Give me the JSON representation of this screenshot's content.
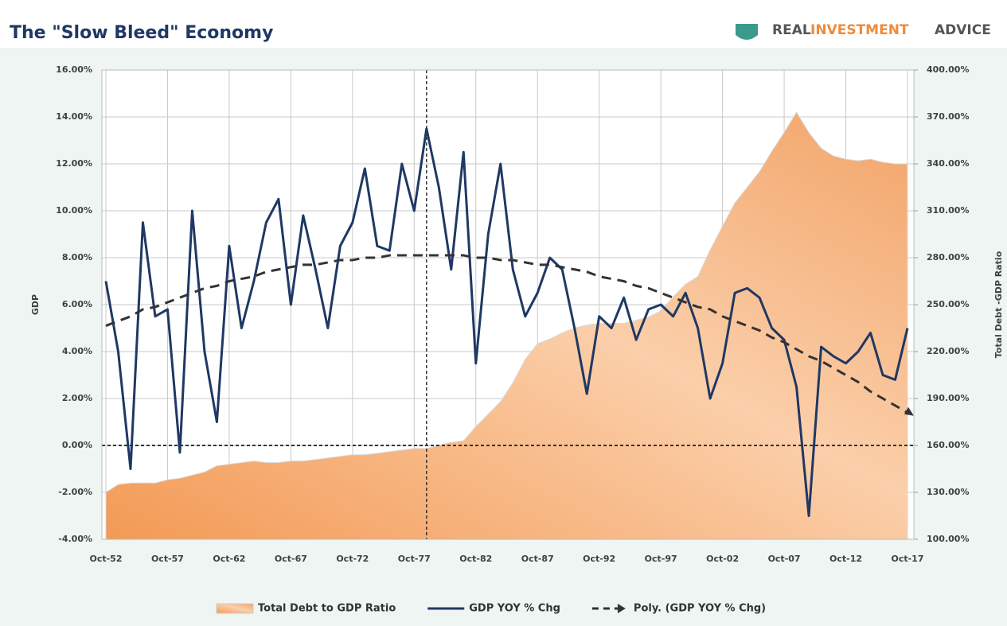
{
  "chart_data": {
    "type": "line",
    "title": "The \"Slow Bleed\" Economy",
    "brand": [
      "REAL",
      "INVESTMENT",
      "ADVICE"
    ],
    "ylabel": "GDP",
    "y2label": "Total Debt -GDP Ratio",
    "categories": [
      "Oct-52",
      null,
      null,
      null,
      null,
      "Oct-57",
      null,
      null,
      null,
      null,
      "Oct-62",
      null,
      null,
      null,
      null,
      "Oct-67",
      null,
      null,
      null,
      null,
      "Oct-72",
      null,
      null,
      null,
      null,
      "Oct-77",
      null,
      null,
      null,
      null,
      "Oct-82",
      null,
      null,
      null,
      null,
      "Oct-87",
      null,
      null,
      null,
      null,
      "Oct-92",
      null,
      null,
      null,
      null,
      "Oct-97",
      null,
      null,
      null,
      null,
      "Oct-02",
      null,
      null,
      null,
      null,
      "Oct-07",
      null,
      null,
      null,
      null,
      "Oct-12",
      null,
      null,
      null,
      null,
      "Oct-17"
    ],
    "ylim": [
      -4,
      16
    ],
    "yticks": [
      {
        "value": -4,
        "label": "-4.00%"
      },
      {
        "value": -2,
        "label": "-2.00%"
      },
      {
        "value": 0,
        "label": "0.00%"
      },
      {
        "value": 2,
        "label": "2.00%"
      },
      {
        "value": 4,
        "label": "4.00%"
      },
      {
        "value": 6,
        "label": "6.00%"
      },
      {
        "value": 8,
        "label": "8.00%"
      },
      {
        "value": 10,
        "label": "10.00%"
      },
      {
        "value": 12,
        "label": "12.00%"
      },
      {
        "value": 14,
        "label": "14.00%"
      },
      {
        "value": 16,
        "label": "16.00%"
      }
    ],
    "y2lim": [
      100,
      400
    ],
    "y2ticks": [
      {
        "value": 100,
        "label": "100.00%"
      },
      {
        "value": 130,
        "label": "130.00%"
      },
      {
        "value": 160,
        "label": "160.00%"
      },
      {
        "value": 190,
        "label": "190.00%"
      },
      {
        "value": 220,
        "label": "220.00%"
      },
      {
        "value": 250,
        "label": "250.00%"
      },
      {
        "value": 280,
        "label": "280.00%"
      },
      {
        "value": 310,
        "label": "310.00%"
      },
      {
        "value": 340,
        "label": "340.00%"
      },
      {
        "value": 370,
        "label": "370.00%"
      },
      {
        "value": 400,
        "label": "400.00%"
      }
    ],
    "grid": true,
    "series": [
      {
        "name": "Total Debt to GDP Ratio",
        "kind": "area",
        "axis": "y2",
        "color": "#f4a467",
        "values": [
          130,
          135,
          136,
          136,
          136,
          138,
          139,
          141,
          143,
          147,
          148,
          149,
          150,
          149,
          149,
          150,
          150,
          151,
          152,
          153,
          154,
          154,
          155,
          156,
          157,
          158,
          158,
          160,
          162,
          163,
          172,
          180,
          188,
          200,
          215,
          225,
          228,
          232,
          235,
          237,
          238,
          238,
          238,
          240,
          242,
          246,
          255,
          263,
          268,
          285,
          300,
          315,
          325,
          335,
          348,
          360,
          373,
          360,
          350,
          345,
          343,
          342,
          343,
          341,
          340,
          340
        ]
      },
      {
        "name": "GDP YOY % Chg",
        "kind": "line",
        "color": "#1f3864",
        "values": [
          7.0,
          4.0,
          -1.0,
          9.5,
          5.5,
          5.8,
          -0.3,
          10.0,
          4.0,
          1.0,
          8.5,
          5.0,
          7.0,
          9.5,
          10.5,
          6.0,
          9.8,
          7.5,
          5.0,
          8.5,
          9.5,
          11.8,
          8.5,
          8.3,
          12.0,
          10.0,
          13.5,
          11.0,
          7.5,
          12.5,
          3.5,
          9.0,
          12.0,
          7.5,
          5.5,
          6.5,
          8.0,
          7.5,
          5.0,
          2.2,
          5.5,
          5.0,
          6.3,
          4.5,
          5.8,
          6.0,
          5.5,
          6.5,
          5.0,
          2.0,
          3.5,
          6.5,
          6.7,
          6.3,
          5.0,
          4.5,
          2.5,
          -3.0,
          4.2,
          3.8,
          3.5,
          4.0,
          4.8,
          3.0,
          2.8,
          5.0
        ]
      },
      {
        "name": "Poly. (GDP YOY % Chg)",
        "kind": "trend",
        "color": "#333333",
        "values": [
          5.1,
          5.3,
          5.5,
          5.8,
          5.9,
          6.1,
          6.3,
          6.5,
          6.7,
          6.8,
          7.0,
          7.1,
          7.2,
          7.4,
          7.5,
          7.6,
          7.7,
          7.7,
          7.8,
          7.9,
          7.9,
          8.0,
          8.0,
          8.1,
          8.1,
          8.1,
          8.1,
          8.1,
          8.1,
          8.1,
          8.0,
          8.0,
          7.9,
          7.9,
          7.8,
          7.7,
          7.7,
          7.6,
          7.5,
          7.4,
          7.2,
          7.1,
          7.0,
          6.8,
          6.7,
          6.5,
          6.3,
          6.1,
          5.9,
          5.8,
          5.5,
          5.3,
          5.1,
          4.9,
          4.6,
          4.4,
          4.1,
          3.8,
          3.6,
          3.3,
          3.0,
          2.7,
          2.3,
          2.0,
          1.7,
          1.4
        ]
      }
    ]
  }
}
